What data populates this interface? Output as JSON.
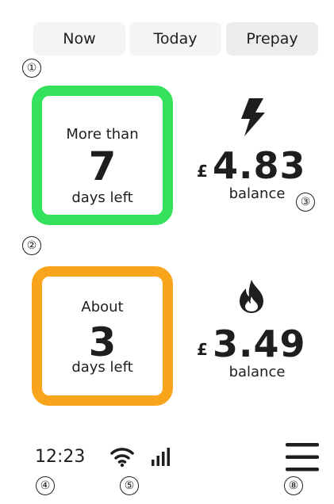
{
  "tabs": [
    "Now",
    "Today",
    "Prepay"
  ],
  "callouts": [
    "①",
    "②",
    "③",
    "④",
    "⑤",
    "⑧"
  ],
  "electricity": {
    "line1": "More than",
    "days": "7",
    "line2": "days left",
    "currency": "£",
    "amount": "4.83",
    "label": "balance"
  },
  "gas": {
    "line1": "About",
    "days": "3",
    "line2": "days left",
    "currency": "£",
    "amount": "3.49",
    "label": "balance"
  },
  "status": {
    "time": "12:23"
  }
}
